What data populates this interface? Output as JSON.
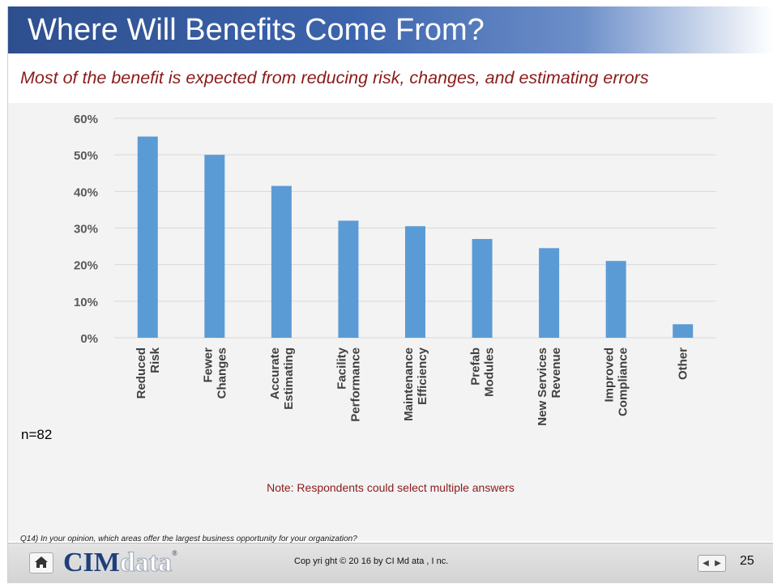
{
  "slide": {
    "title": "Where Will Benefits Come From?",
    "subtitle": "Most of the benefit is expected from reducing  risk, changes, and estimating  errors",
    "sample_size": "n=82",
    "note": "Note: Respondents  could select multiple answers",
    "question": "Q14)  In  your opinion,  which areas offer  the largest business opportunity    for your organization?"
  },
  "chart_data": {
    "type": "bar",
    "title": "",
    "xlabel": "",
    "ylabel": "",
    "categories": [
      [
        "Reduced",
        "Risk"
      ],
      [
        "Fewer",
        "Changes"
      ],
      [
        "Accurate",
        "Estimating"
      ],
      [
        "Facility",
        "Performance"
      ],
      [
        "Maintenance",
        "Efficiency"
      ],
      [
        "Prefab",
        "Modules"
      ],
      [
        "New Services",
        "Revenue"
      ],
      [
        "Improved",
        "Compliance"
      ],
      [
        "Other"
      ]
    ],
    "values": [
      0.55,
      0.5,
      0.415,
      0.32,
      0.305,
      0.27,
      0.245,
      0.21,
      0.037
    ],
    "ylim": [
      0,
      0.6
    ],
    "yticks": [
      0,
      0.1,
      0.2,
      0.3,
      0.4,
      0.5,
      0.6
    ],
    "ytick_labels": [
      "0%",
      "10%",
      "20%",
      "30%",
      "40%",
      "50%",
      "60%"
    ],
    "grid": true,
    "bar_color": "#5b9bd5",
    "legend": "none"
  },
  "footer": {
    "logo_prefix": "CIM",
    "logo_suffix": "data",
    "logo_mark": "®",
    "copyright": "Cop yri ght  ©  20 16  by  CI Md ata , I nc.",
    "page_number": "25",
    "icons": {
      "home": "home-icon",
      "prev": "prev-arrow-icon",
      "next": "next-arrow-icon"
    },
    "prev_glyph": "◀",
    "next_glyph": "▶"
  },
  "colors": {
    "title_bar": "#3c64ad",
    "subtitle": "#8b1a1a",
    "note": "#8b1a1a",
    "chart_panel": "#f3f3f3"
  }
}
